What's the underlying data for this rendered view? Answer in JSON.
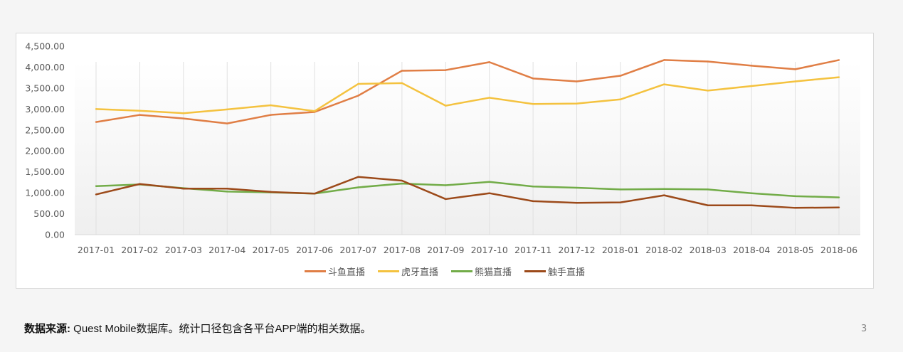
{
  "chart_data": {
    "type": "line",
    "title": "",
    "xlabel": "",
    "ylabel": "",
    "ylim": [
      0,
      4500
    ],
    "yticks": [
      "0.00",
      "500.00",
      "1,000.00",
      "1,500.00",
      "2,000.00",
      "2,500.00",
      "3,000.00",
      "3,500.00",
      "4,000.00",
      "4,500.00"
    ],
    "grid": "vertical",
    "legend_position": "bottom",
    "categories": [
      "2017-01",
      "2017-02",
      "2017-03",
      "2017-04",
      "2017-05",
      "2017-06",
      "2017-07",
      "2017-08",
      "2017-09",
      "2017-10",
      "2017-11",
      "2017-12",
      "2018-01",
      "2018-02",
      "2018-03",
      "2018-04",
      "2018-05",
      "2018-06"
    ],
    "series": [
      {
        "name": "斗鱼直播",
        "color": "#E07E45",
        "values": [
          2690,
          2860,
          2775,
          2655,
          2860,
          2930,
          3320,
          3915,
          3930,
          4120,
          3730,
          3660,
          3795,
          4170,
          4135,
          4035,
          3950,
          4170
        ]
      },
      {
        "name": "虎牙直播",
        "color": "#F4C23F",
        "values": [
          3000,
          2960,
          2900,
          2990,
          3090,
          2950,
          3600,
          3620,
          3080,
          3270,
          3120,
          3130,
          3230,
          3590,
          3440,
          3550,
          3660,
          3760
        ]
      },
      {
        "name": "熊猫直播",
        "color": "#72AC48",
        "values": [
          1160,
          1200,
          1110,
          1030,
          1010,
          980,
          1130,
          1220,
          1180,
          1260,
          1150,
          1120,
          1080,
          1090,
          1080,
          990,
          920,
          890
        ]
      },
      {
        "name": "触手直播",
        "color": "#9C4A1A",
        "values": [
          960,
          1210,
          1100,
          1100,
          1020,
          980,
          1380,
          1290,
          850,
          990,
          800,
          760,
          770,
          940,
          700,
          700,
          640,
          650
        ]
      }
    ]
  },
  "footer": {
    "source_label": "数据来源:",
    "source_text": " Quest Mobile数据库。统计口径包含各平台APP端的相关数据。",
    "page_number": "3"
  }
}
